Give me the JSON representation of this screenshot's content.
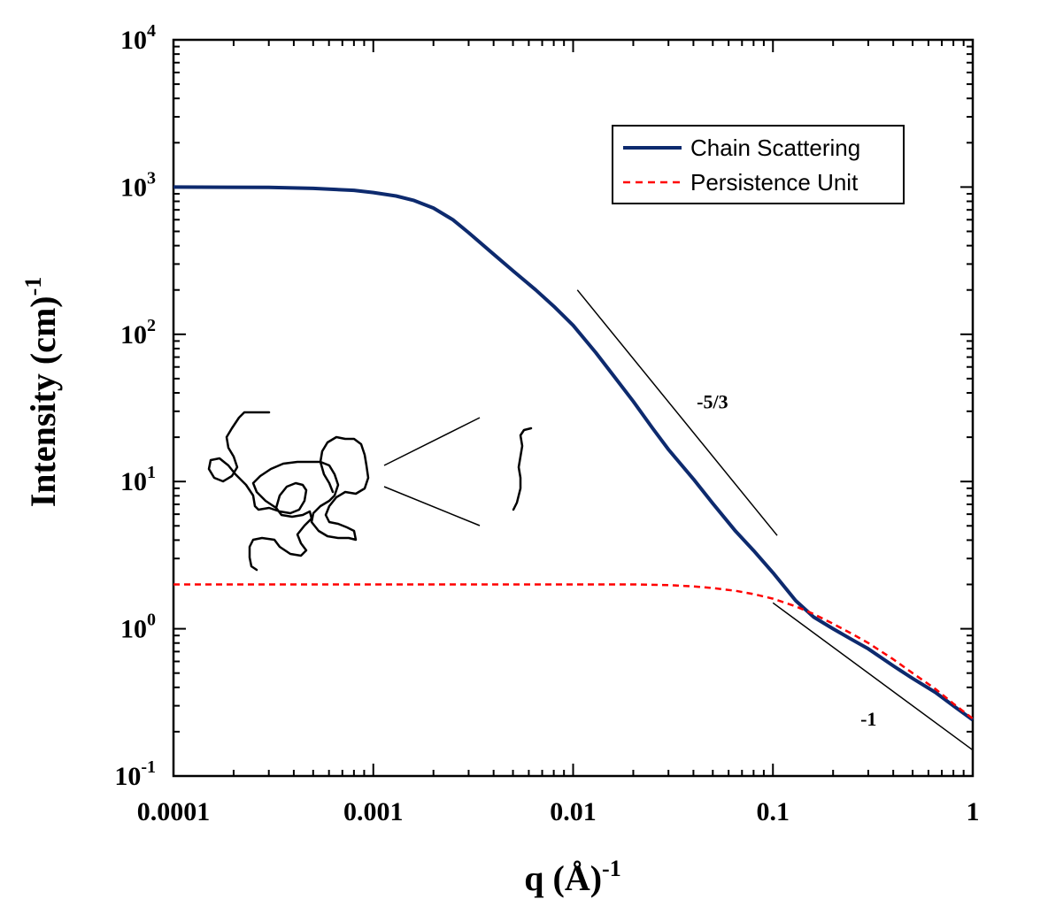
{
  "chart_data": {
    "type": "line",
    "x_scale": "log",
    "y_scale": "log",
    "xlim": [
      0.0001,
      1
    ],
    "ylim": [
      0.1,
      10000
    ],
    "xlabel": "q (Å)",
    "xlabel_exp": "-1",
    "ylabel": "Intensity (cm)",
    "ylabel_exp": "-1",
    "x_ticks": [
      {
        "value": 0.0001,
        "label": "0.0001"
      },
      {
        "value": 0.001,
        "label": "0.001"
      },
      {
        "value": 0.01,
        "label": "0.01"
      },
      {
        "value": 0.1,
        "label": "0.1"
      },
      {
        "value": 1,
        "label": "1"
      }
    ],
    "y_ticks": [
      {
        "value": 0.1,
        "base": "10",
        "exp": "-1"
      },
      {
        "value": 1,
        "base": "10",
        "exp": "0"
      },
      {
        "value": 10,
        "base": "10",
        "exp": "1"
      },
      {
        "value": 100,
        "base": "10",
        "exp": "2"
      },
      {
        "value": 1000,
        "base": "10",
        "exp": "3"
      },
      {
        "value": 10000,
        "base": "10",
        "exp": "4"
      }
    ],
    "series": [
      {
        "name": "Chain Scattering",
        "color": "#0d2a6e",
        "style": "solid",
        "x": [
          0.0001,
          0.0003,
          0.0005,
          0.0008,
          0.001,
          0.0013,
          0.0016,
          0.002,
          0.0025,
          0.003,
          0.004,
          0.005,
          0.0065,
          0.008,
          0.01,
          0.013,
          0.016,
          0.02,
          0.025,
          0.03,
          0.04,
          0.05,
          0.065,
          0.08,
          0.1,
          0.13,
          0.16,
          0.2,
          0.25,
          0.3,
          0.4,
          0.5,
          0.65,
          0.8,
          1
        ],
        "y": [
          1000,
          995,
          980,
          950,
          918,
          870,
          810,
          720,
          600,
          490,
          350,
          270,
          200,
          155,
          115,
          75,
          52,
          35,
          23,
          16.5,
          10.4,
          7.1,
          4.6,
          3.4,
          2.4,
          1.55,
          1.2,
          1.0,
          0.84,
          0.73,
          0.56,
          0.46,
          0.37,
          0.3,
          0.24
        ]
      },
      {
        "name": "Persistence Unit",
        "color": "#ff0000",
        "style": "dashed",
        "x": [
          0.0001,
          0.001,
          0.01,
          0.02,
          0.03,
          0.04,
          0.05,
          0.065,
          0.08,
          0.1,
          0.13,
          0.16,
          0.2,
          0.25,
          0.3,
          0.4,
          0.5,
          0.65,
          0.8,
          1
        ],
        "y": [
          2.0,
          2.0,
          2.0,
          2.0,
          1.98,
          1.94,
          1.89,
          1.81,
          1.72,
          1.6,
          1.42,
          1.26,
          1.08,
          0.92,
          0.8,
          0.62,
          0.5,
          0.39,
          0.31,
          0.245
        ]
      }
    ],
    "reference_lines": [
      {
        "label": "-5/3",
        "x": [
          0.0105,
          0.105
        ],
        "y": [
          200,
          4.3
        ]
      },
      {
        "label": "-1",
        "x": [
          0.1,
          1
        ],
        "y": [
          1.5,
          0.15
        ]
      }
    ],
    "legend": {
      "position": "top-right"
    },
    "grid": false,
    "axis_color": "#000000"
  }
}
